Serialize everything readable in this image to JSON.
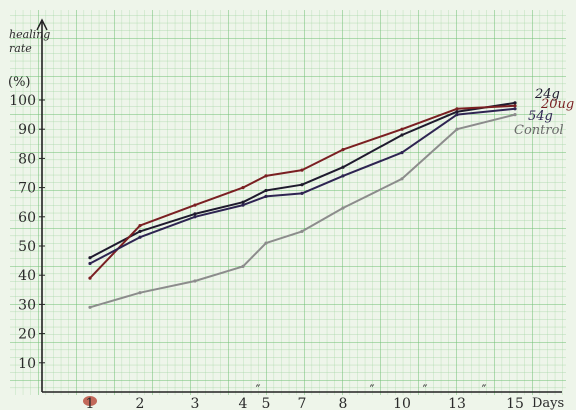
{
  "chart_data": {
    "type": "line",
    "title": "",
    "ylabel_lines": [
      "healing",
      "rate"
    ],
    "ylabel_unit": "(%)",
    "xlabel": "Days",
    "x_tick_labels": [
      "1",
      "2",
      "3",
      "4",
      "5",
      "7",
      "8",
      "10",
      "13",
      "15"
    ],
    "y_ticks": [
      10,
      20,
      30,
      40,
      50,
      60,
      70,
      80,
      90,
      100
    ],
    "ylim": [
      0,
      110
    ],
    "grid": true,
    "legend_placement": "right end of lines",
    "series": [
      {
        "name": "24g",
        "color": "#1f1a2e",
        "values": [
          46,
          55,
          61,
          65,
          69,
          71,
          77,
          88,
          96,
          99
        ]
      },
      {
        "name": "20ug",
        "color": "#7a1f22",
        "values": [
          39,
          57,
          64,
          70,
          74,
          76,
          83,
          90,
          97,
          98
        ]
      },
      {
        "name": "54g",
        "color": "#2e2452",
        "values": [
          44,
          53,
          60,
          64,
          67,
          68,
          74,
          82,
          95,
          97
        ]
      },
      {
        "name": "Control",
        "color": "#8c8c8c",
        "values": [
          29,
          34,
          38,
          43,
          51,
          55,
          63,
          73,
          90,
          95
        ]
      }
    ]
  }
}
